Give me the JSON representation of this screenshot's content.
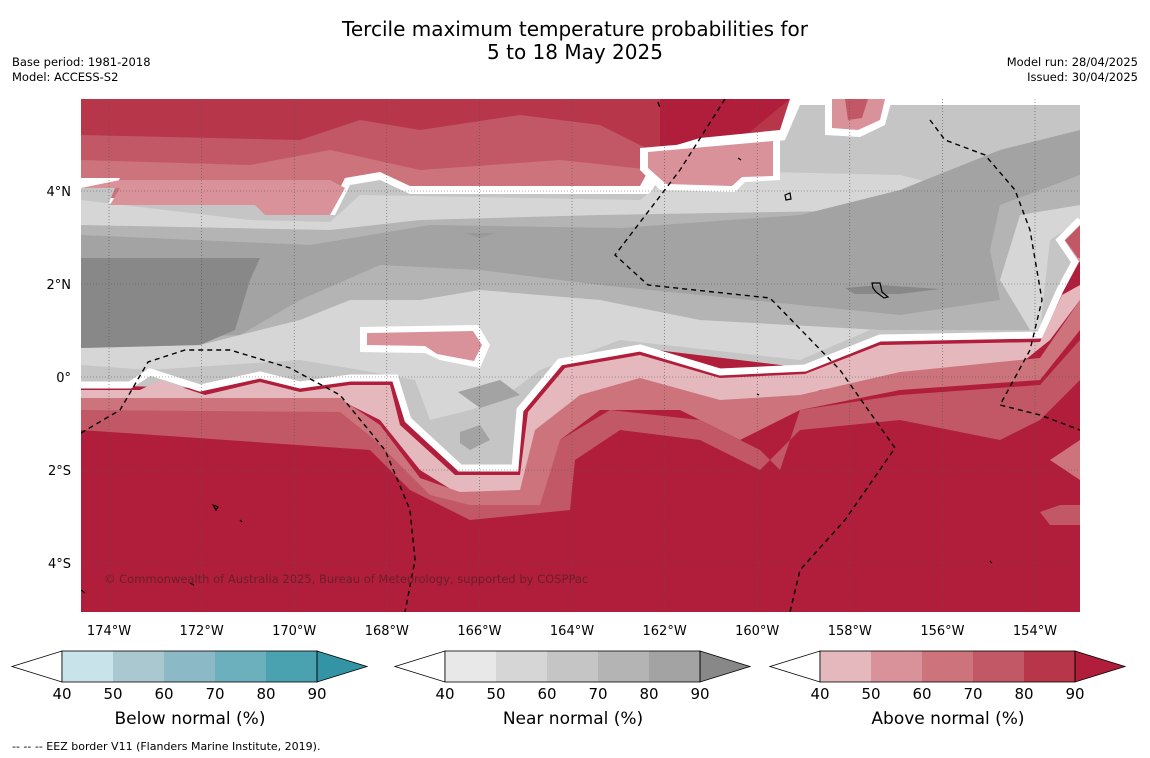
{
  "title": {
    "line1": "Tercile maximum temperature probabilities for",
    "line2": "5 to 18 May 2025"
  },
  "meta_left": {
    "base_period": "Base period: 1981-2018",
    "model": "Model: ACCESS-S2"
  },
  "meta_right": {
    "model_run": "Model run: 28/04/2025",
    "issued": "Issued: 30/04/2025"
  },
  "map": {
    "lon_ticks": [
      "174°W",
      "172°W",
      "170°W",
      "168°W",
      "166°W",
      "164°W",
      "162°W",
      "160°W",
      "158°W",
      "156°W",
      "154°W"
    ],
    "lat_ticks": [
      "4°N",
      "2°N",
      "0°",
      "2°S",
      "4°S"
    ],
    "copyright": "© Commonwealth of Australia 2025, Bureau of Meteorology, supported by COSPPac",
    "grid": true
  },
  "colorbars": [
    {
      "title": "Below normal (%)",
      "ticks": [
        "40",
        "50",
        "60",
        "70",
        "80",
        "90"
      ],
      "colors": [
        "#ffffff",
        "#c9e3ea",
        "#a9c8cf",
        "#8bb9c6",
        "#6db0bd",
        "#4aa1b0",
        "#3394a5"
      ]
    },
    {
      "title": "Near normal (%)",
      "ticks": [
        "40",
        "50",
        "60",
        "70",
        "80",
        "90"
      ],
      "colors": [
        "#ffffff",
        "#e8e8e8",
        "#d6d6d6",
        "#c5c5c5",
        "#b4b4b4",
        "#a3a3a3",
        "#888888"
      ]
    },
    {
      "title": "Above normal (%)",
      "ticks": [
        "40",
        "50",
        "60",
        "70",
        "80",
        "90"
      ],
      "colors": [
        "#ffffff",
        "#e4b8bd",
        "#d9929a",
        "#cc737c",
        "#c25866",
        "#b7364a",
        "#b01e3c"
      ]
    }
  ],
  "footnote": "--  --  -- EEZ border V11 (Flanders Marine Institute, 2019)."
}
